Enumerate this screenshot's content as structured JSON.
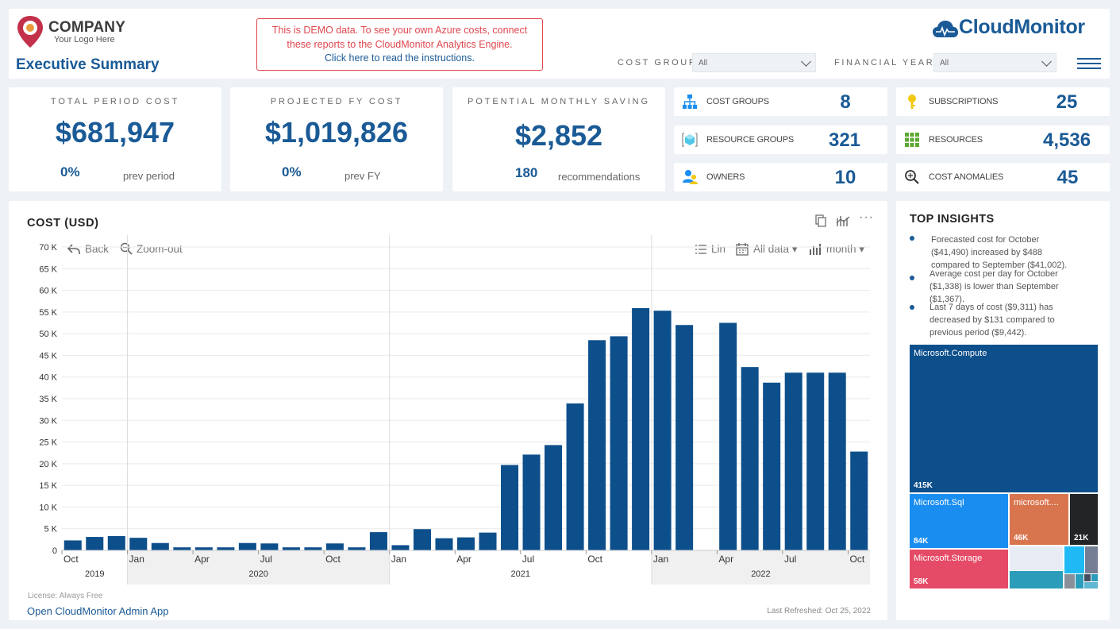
{
  "header": {
    "logo_name": "COMPANY",
    "logo_sub": "Your Logo Here",
    "page_title": "Executive Summary",
    "demo_line1": "This is DEMO data. To see your own Azure costs, connect",
    "demo_line2": "these reports to the CloudMonitor Analytics Engine.",
    "demo_link": "Click here to read the instructions.",
    "brand": "CloudMonitor",
    "cost_group_label": "COST GROUP",
    "cost_group_value": "All",
    "financial_year_label": "FINANCIAL YEAR",
    "financial_year_value": "All"
  },
  "kpis": [
    {
      "title": "TOTAL PERIOD COST",
      "value": "$681,947",
      "pct": "0%",
      "sub": "prev period"
    },
    {
      "title": "PROJECTED FY COST",
      "value": "$1,019,826",
      "pct": "0%",
      "sub": "prev FY"
    },
    {
      "title": "POTENTIAL MONTHLY SAVING",
      "value": "$2,852",
      "pct": "180",
      "sub": "recommendations"
    }
  ],
  "counts": [
    {
      "label": "COST GROUPS",
      "value": "8",
      "icon": "hierarchy-icon"
    },
    {
      "label": "SUBSCRIPTIONS",
      "value": "25",
      "icon": "key-icon"
    },
    {
      "label": "RESOURCE GROUPS",
      "value": "321",
      "icon": "cube-icon"
    },
    {
      "label": "RESOURCES",
      "value": "4,536",
      "icon": "grid-icon"
    },
    {
      "label": "OWNERS",
      "value": "10",
      "icon": "users-icon"
    },
    {
      "label": "COST ANOMALIES",
      "value": "45",
      "icon": "magnifier-icon"
    }
  ],
  "chart": {
    "title": "COST (USD)",
    "back": "Back",
    "zoom_out": "Zoom-out",
    "scale": "Lin",
    "range": "All data",
    "granularity": "month",
    "license": "License: Always Free",
    "admin_link": "Open CloudMonitor Admin App",
    "refreshed": "Last Refreshed: Oct 25, 2022"
  },
  "chart_data": {
    "type": "bar",
    "title": "COST (USD)",
    "categories": [
      "Oct 2019",
      "Nov 2019",
      "Dec 2019",
      "Jan 2020",
      "Feb 2020",
      "Mar 2020",
      "Apr 2020",
      "May 2020",
      "Jun 2020",
      "Jul 2020",
      "Aug 2020",
      "Sep 2020",
      "Oct 2020",
      "Nov 2020",
      "Dec 2020",
      "Jan 2021",
      "Feb 2021",
      "Mar 2021",
      "Apr 2021",
      "May 2021",
      "Jun 2021",
      "Jul 2021",
      "Aug 2021",
      "Sep 2021",
      "Oct 2021",
      "Nov 2021",
      "Dec 2021",
      "Jan 2022",
      "Feb 2022",
      "Mar 2022",
      "Apr 2022",
      "May 2022",
      "Jun 2022",
      "Jul 2022",
      "Aug 2022",
      "Sep 2022",
      "Oct 2022"
    ],
    "values": [
      2300,
      3100,
      3300,
      2900,
      1700,
      700,
      700,
      700,
      1700,
      1600,
      700,
      700,
      1600,
      700,
      4200,
      1200,
      4900,
      2800,
      3000,
      4100,
      19700,
      22100,
      24300,
      33900,
      48500,
      49400,
      55900,
      55300,
      52000,
      0,
      52500,
      42300,
      38700,
      41000,
      41000,
      41000,
      22800
    ],
    "ylim": [
      0,
      70000
    ],
    "yticks": [
      0,
      5000,
      10000,
      15000,
      20000,
      25000,
      30000,
      35000,
      40000,
      45000,
      50000,
      55000,
      60000,
      65000,
      70000
    ],
    "ytick_labels": [
      "0",
      "5 K",
      "10 K",
      "15 K",
      "20 K",
      "25 K",
      "30 K",
      "35 K",
      "40 K",
      "45 K",
      "50 K",
      "55 K",
      "60 K",
      "65 K",
      "70 K"
    ],
    "month_ticks": [
      {
        "index": 0,
        "label": "Oct"
      },
      {
        "index": 3,
        "label": "Jan"
      },
      {
        "index": 6,
        "label": "Apr"
      },
      {
        "index": 9,
        "label": "Jul"
      },
      {
        "index": 12,
        "label": "Oct"
      },
      {
        "index": 15,
        "label": "Jan"
      },
      {
        "index": 18,
        "label": "Apr"
      },
      {
        "index": 21,
        "label": "Jul"
      },
      {
        "index": 24,
        "label": "Oct"
      },
      {
        "index": 27,
        "label": "Jan"
      },
      {
        "index": 30,
        "label": "Apr"
      },
      {
        "index": 33,
        "label": "Jul"
      },
      {
        "index": 36,
        "label": "Oct"
      }
    ],
    "years": [
      {
        "label": "2019",
        "start": 0,
        "end": 2
      },
      {
        "label": "2020",
        "start": 3,
        "end": 14
      },
      {
        "label": "2021",
        "start": 15,
        "end": 26
      },
      {
        "label": "2022",
        "start": 27,
        "end": 36
      }
    ],
    "grid": true,
    "bar_color": "#0d4f8b"
  },
  "insights": {
    "title": "TOP INSIGHTS",
    "items": [
      "Forecasted cost for October ($41,490) increased by $488 compared to September ($41,002).",
      "Average cost per day for October ($1,338) is lower than September ($1,367).",
      "Last 7 days of cost ($9,311) has decreased by $131 compared to previous period ($9,442)."
    ],
    "treemap": [
      {
        "label": "Microsoft.Compute",
        "value": "415K",
        "color": "#0d4f8b"
      },
      {
        "label": "Microsoft.Sql",
        "value": "84K",
        "color": "#1a8ef0"
      },
      {
        "label": "microsoft....",
        "value": "46K",
        "color": "#d9754e"
      },
      {
        "label": "",
        "value": "21K",
        "color": "#222426"
      },
      {
        "label": "Microsoft.Storage",
        "value": "58K",
        "color": "#e54b66"
      }
    ]
  }
}
